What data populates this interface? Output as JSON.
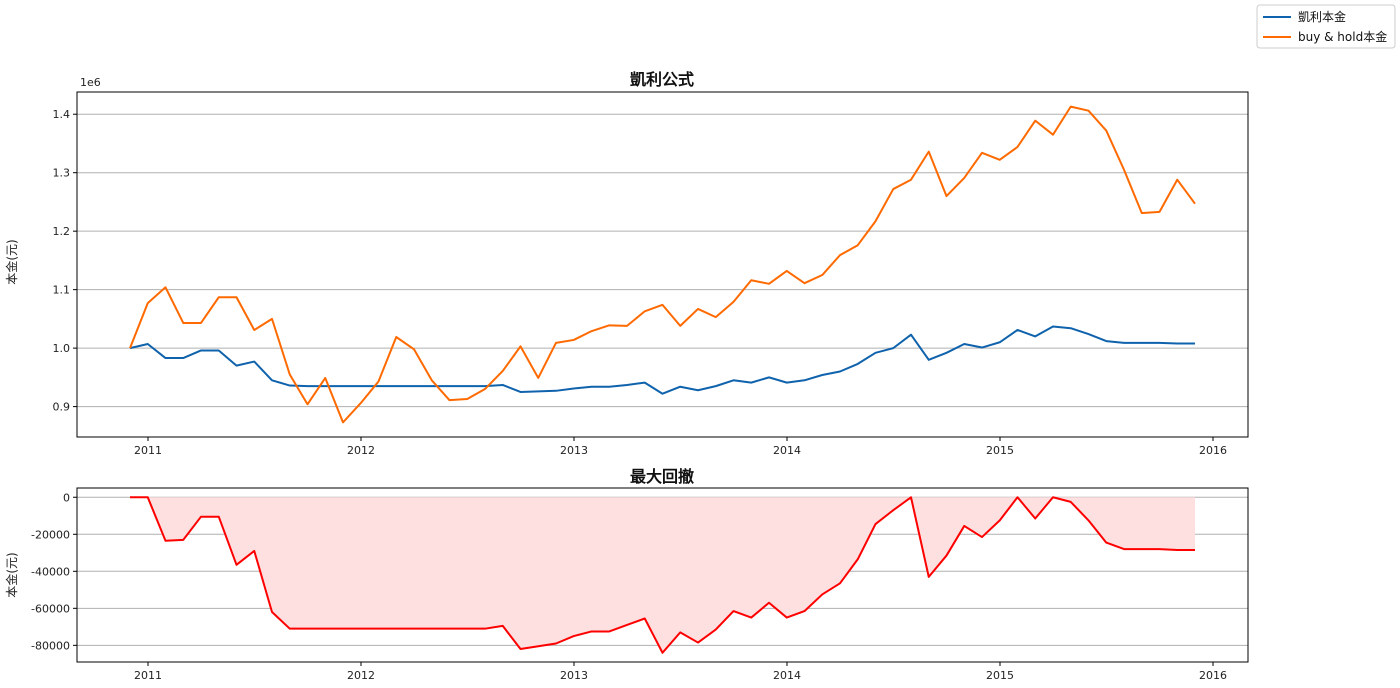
{
  "chart_data": [
    {
      "type": "line",
      "title": "凱利公式",
      "ylabel": "本金(元)",
      "xlabel": "",
      "offset_label": "1e6",
      "x_start": "2010-12",
      "x_freq": "monthly",
      "xticks": [
        "2011",
        "2012",
        "2013",
        "2014",
        "2015",
        "2016"
      ],
      "yticks": [
        "0.9",
        "1.0",
        "1.1",
        "1.2",
        "1.3",
        "1.4"
      ],
      "ytick_values": [
        0.9,
        1.0,
        1.1,
        1.2,
        1.3,
        1.4
      ],
      "ylim": [
        0.848,
        1.438
      ],
      "grid": "horizontal",
      "series": [
        {
          "name": "凱利本金",
          "color": "#0f62ac",
          "values": [
            1.0,
            1.007,
            0.983,
            0.983,
            0.996,
            0.996,
            0.97,
            0.977,
            0.945,
            0.936,
            0.935,
            0.935,
            0.935,
            0.935,
            0.935,
            0.935,
            0.935,
            0.935,
            0.935,
            0.935,
            0.935,
            0.937,
            0.925,
            0.926,
            0.927,
            0.931,
            0.934,
            0.934,
            0.937,
            0.941,
            0.922,
            0.934,
            0.928,
            0.935,
            0.945,
            0.941,
            0.95,
            0.941,
            0.945,
            0.954,
            0.96,
            0.973,
            0.992,
            1.0,
            1.023,
            0.98,
            0.992,
            1.007,
            1.001,
            1.01,
            1.031,
            1.02,
            1.037,
            1.034,
            1.024,
            1.012,
            1.009,
            1.009,
            1.009,
            1.008,
            1.008
          ]
        },
        {
          "name": "buy & hold本金",
          "color": "#ff6a00",
          "values": [
            1.0,
            1.077,
            1.104,
            1.043,
            1.043,
            1.087,
            1.087,
            1.031,
            1.05,
            0.955,
            0.904,
            0.949,
            0.873,
            0.906,
            0.943,
            1.019,
            0.998,
            0.945,
            0.911,
            0.913,
            0.93,
            0.961,
            1.003,
            0.949,
            1.009,
            1.014,
            1.029,
            1.039,
            1.038,
            1.063,
            1.074,
            1.038,
            1.067,
            1.053,
            1.079,
            1.116,
            1.11,
            1.132,
            1.111,
            1.125,
            1.159,
            1.176,
            1.217,
            1.272,
            1.288,
            1.336,
            1.26,
            1.291,
            1.334,
            1.322,
            1.344,
            1.389,
            1.365,
            1.413,
            1.406,
            1.372,
            1.305,
            1.231,
            1.233,
            1.288,
            1.247
          ]
        }
      ]
    },
    {
      "type": "area",
      "title": "最大回撤",
      "ylabel": "本金(元)",
      "xlabel": "",
      "x_start": "2010-12",
      "x_freq": "monthly",
      "xticks": [
        "2011",
        "2012",
        "2013",
        "2014",
        "2015",
        "2016"
      ],
      "yticks": [
        "0",
        "-20000",
        "-40000",
        "-60000",
        "-80000"
      ],
      "ytick_values": [
        0,
        -20000,
        -40000,
        -60000,
        -80000
      ],
      "ylim": [
        -89000,
        5000
      ],
      "grid": "horizontal",
      "series": [
        {
          "name": "drawdown",
          "color": "#ff0000",
          "fill": "#ffe0e0",
          "values": [
            0,
            0,
            -23500,
            -23000,
            -10500,
            -10500,
            -36500,
            -29000,
            -62000,
            -71000,
            -71000,
            -71000,
            -71000,
            -71000,
            -71000,
            -71000,
            -71000,
            -71000,
            -71000,
            -71000,
            -71000,
            -69500,
            -82000,
            -80500,
            -79000,
            -75000,
            -72500,
            -72500,
            -69000,
            -65500,
            -84000,
            -73000,
            -78500,
            -71500,
            -61500,
            -65000,
            -57000,
            -65000,
            -61500,
            -52500,
            -46500,
            -33500,
            -14500,
            -7000,
            0,
            -43000,
            -31500,
            -15500,
            -21500,
            -12500,
            0,
            -11500,
            0,
            -2500,
            -12500,
            -24500,
            -28000,
            -28000,
            -28000,
            -28500,
            -28500
          ]
        }
      ]
    }
  ],
  "legend": {
    "placement": "top-right",
    "items": [
      "凱利本金",
      "buy & hold本金"
    ]
  }
}
